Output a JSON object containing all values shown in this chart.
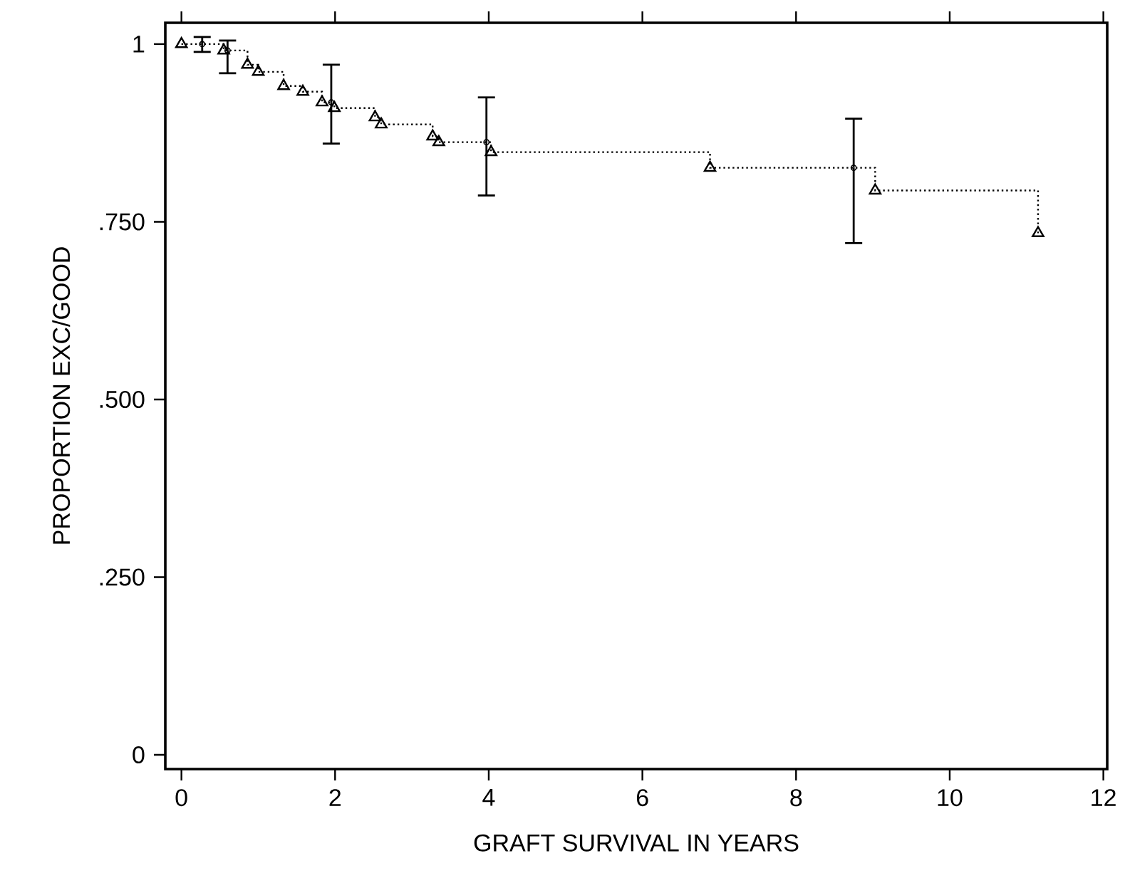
{
  "chart_data": {
    "type": "step",
    "xlabel": "GRAFT SURVIVAL IN YEARS",
    "ylabel": "PROPORTION EXC/GOOD",
    "xlim": [
      -0.21,
      12.05
    ],
    "ylim": [
      -0.02,
      1.03
    ],
    "xticks": [
      0,
      2,
      4,
      6,
      8,
      10,
      12
    ],
    "yticks": [
      0,
      {
        "value": 0.25,
        "label": ".250"
      },
      {
        "value": 0.5,
        "label": ".500"
      },
      {
        "value": 0.75,
        "label": ".750"
      },
      1
    ],
    "grid": false,
    "series": [
      {
        "color": "#000000",
        "marker": "triangle",
        "line_style": "dotted",
        "x": [
          0,
          0.55,
          0.86,
          1.0,
          1.33,
          1.58,
          1.83,
          1.99,
          2.52,
          2.6,
          3.27,
          3.35,
          4.03,
          6.88,
          9.03,
          11.15
        ],
        "values": [
          1,
          0.991,
          0.971,
          0.961,
          0.941,
          0.933,
          0.918,
          0.91,
          0.897,
          0.887,
          0.87,
          0.862,
          0.848,
          0.826,
          0.794,
          0.734
        ]
      },
      {
        "type": "scatter",
        "color": "#000000",
        "marker": "circle",
        "x": [
          0.27,
          0.6,
          1.95,
          3.97,
          8.75
        ],
        "values": [
          1,
          0.991,
          0.918,
          0.862,
          0.826
        ],
        "errors": [
          [
            0.989,
            1.01
          ],
          [
            0.959,
            1.005
          ],
          [
            0.86,
            0.971
          ],
          [
            0.787,
            0.925
          ],
          [
            0.72,
            0.895
          ]
        ]
      }
    ]
  }
}
